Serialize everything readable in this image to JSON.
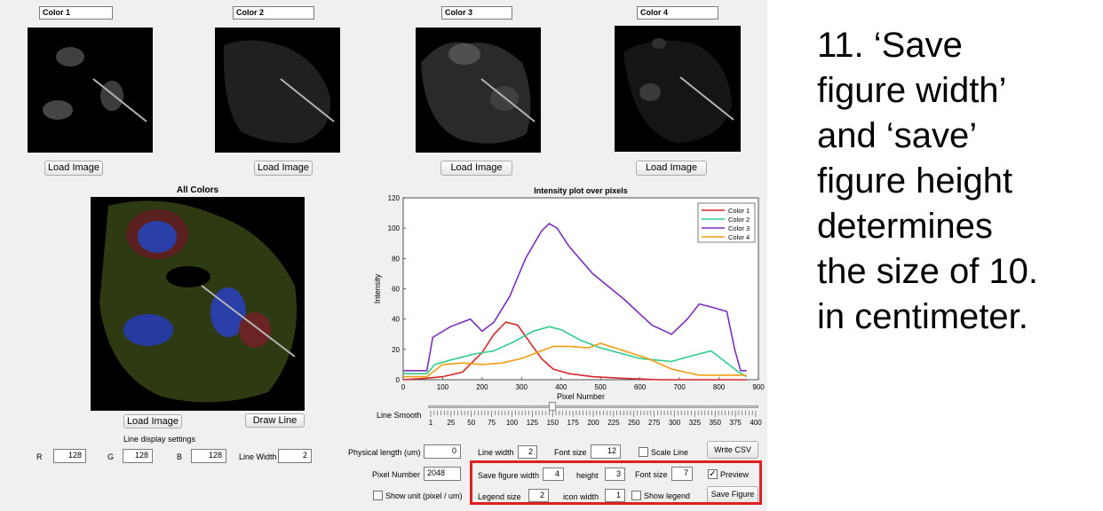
{
  "panels": [
    {
      "name": "Color 1",
      "load": "Load Image"
    },
    {
      "name": "Color 2",
      "load": "Load Image"
    },
    {
      "name": "Color 3",
      "load": "Load Image"
    },
    {
      "name": "Color 4",
      "load": "Load Image"
    }
  ],
  "all_colors": {
    "title": "All Colors",
    "load": "Load Image",
    "draw_line": "Draw Line",
    "settings_title": "Line display settings",
    "r_label": "R",
    "r_value": "128",
    "g_label": "G",
    "g_value": "128",
    "b_label": "B",
    "b_value": "128",
    "lw_label": "Line Width",
    "lw_value": "2"
  },
  "smooth": {
    "label": "Line Smooth",
    "ticks": [
      "1",
      "25",
      "50",
      "75",
      "100",
      "125",
      "150",
      "175",
      "200",
      "225",
      "250",
      "275",
      "300",
      "325",
      "350",
      "375",
      "400"
    ],
    "value": 150
  },
  "controls": {
    "phys_label": "Physical length (um)",
    "phys_value": "0",
    "lw_label": "Line width",
    "lw_value": "2",
    "fs_label": "Font size",
    "fs_value": "12",
    "scale_label": "Scale Line",
    "write_csv": "Write CSV",
    "pixel_label": "Pixel Number",
    "pixel_value": "2048",
    "unit_label": "Show unit (pixel / um)",
    "sfw_label": "Save figure width",
    "sfw_value": "4",
    "height_label": "height",
    "height_value": "3",
    "fs2_label": "Font size",
    "fs2_value": "7",
    "preview_label": "Preview",
    "legend_label": "Legend size",
    "legend_value": "2",
    "icon_label": "icon width",
    "icon_value": "1",
    "show_legend_label": "Show legend",
    "save_figure": "Save Figure"
  },
  "chart_data": {
    "type": "line",
    "title": "Intensity plot over pixels",
    "xlabel": "Pixel Number",
    "ylabel": "Intensity",
    "xlim": [
      0,
      900
    ],
    "ylim": [
      0,
      120
    ],
    "xticks": [
      0,
      100,
      200,
      300,
      400,
      500,
      600,
      700,
      800,
      900
    ],
    "yticks": [
      0,
      20,
      40,
      60,
      80,
      100,
      120
    ],
    "legend_position": "top-right",
    "series": [
      {
        "name": "Color 1",
        "color": "#d62728",
        "x": [
          0,
          60,
          100,
          150,
          200,
          230,
          260,
          290,
          320,
          350,
          380,
          420,
          480,
          550,
          650,
          800,
          870
        ],
        "y": [
          0,
          1,
          2,
          5,
          18,
          30,
          38,
          36,
          25,
          14,
          7,
          4,
          2,
          1,
          0,
          0,
          0
        ]
      },
      {
        "name": "Color 2",
        "color": "#2ecc8a",
        "x": [
          0,
          60,
          80,
          120,
          180,
          230,
          280,
          330,
          370,
          400,
          450,
          500,
          600,
          680,
          720,
          780,
          850,
          870
        ],
        "y": [
          4,
          4,
          10,
          13,
          17,
          19,
          25,
          32,
          35,
          33,
          26,
          21,
          14,
          12,
          15,
          19,
          5,
          2
        ]
      },
      {
        "name": "Color 3",
        "color": "#7b2fbe",
        "x": [
          0,
          60,
          75,
          120,
          170,
          200,
          230,
          270,
          310,
          350,
          370,
          390,
          420,
          480,
          560,
          630,
          680,
          720,
          750,
          780,
          820,
          840,
          855,
          870
        ],
        "y": [
          6,
          6,
          28,
          35,
          40,
          32,
          38,
          55,
          80,
          98,
          103,
          100,
          88,
          70,
          53,
          36,
          30,
          40,
          50,
          48,
          45,
          20,
          6,
          6
        ]
      },
      {
        "name": "Color 4",
        "color": "#f39c12",
        "x": [
          0,
          60,
          100,
          150,
          200,
          250,
          300,
          340,
          380,
          420,
          470,
          500,
          560,
          620,
          680,
          750,
          800,
          860,
          870
        ],
        "y": [
          2,
          2,
          10,
          11,
          10,
          11,
          14,
          18,
          22,
          22,
          21,
          24,
          19,
          14,
          7,
          3,
          3,
          3,
          3
        ]
      }
    ]
  },
  "slide_text": [
    "11. ‘Save",
    "figure width’",
    "and ‘save’",
    "figure height",
    "determines",
    "the size of 10.",
    "in centimeter."
  ]
}
